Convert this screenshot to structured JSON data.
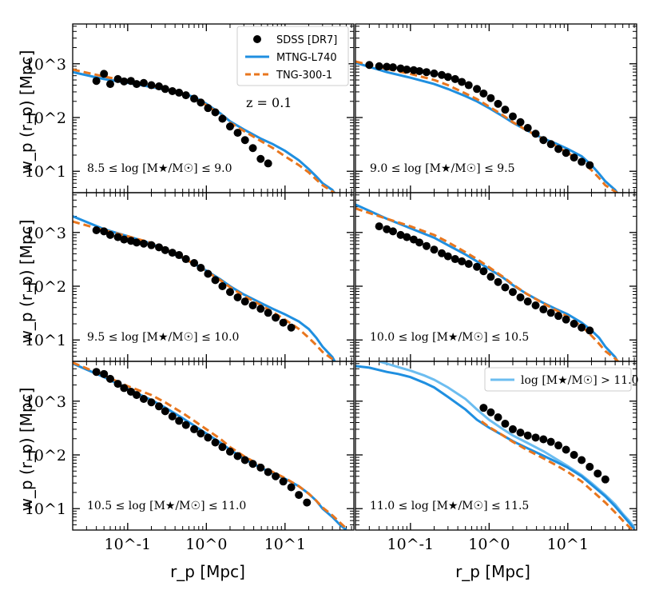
{
  "chart_data": {
    "type": "line",
    "layout": "3x2 grid of log-log panels with shared axes",
    "xlabel": "r_p [Mpc]",
    "ylabel": "w_p (r_p) [Mpc]",
    "xscale": "log",
    "yscale": "log",
    "xlim": [
      0.02,
      75
    ],
    "ylim": [
      4,
      5500
    ],
    "x_tick_labels": [
      "10^-1",
      "10^0",
      "10^1"
    ],
    "y_tick_labels": [
      "10^1",
      "10^2",
      "10^3"
    ],
    "legend": {
      "placement": "top-right of first panel",
      "entries": [
        {
          "label": "SDSS [DR7]",
          "marker": "circle",
          "color": "#000000"
        },
        {
          "label": "MTNG-L740",
          "style": "solid",
          "color": "#1f8fe0"
        },
        {
          "label": "TNG-300-1",
          "style": "dashed",
          "color": "#e8761e"
        }
      ]
    },
    "extra_legend": {
      "placement": "top-right of last panel",
      "label": "log [M★/M☉] > 11.0",
      "style": "solid",
      "color": "#6cbdf0"
    },
    "redshift_label": "z = 0.1",
    "colors": {
      "sdss": "#000000",
      "mtng": "#1f8fe0",
      "tng": "#e8761e",
      "mtng_high": "#6cbdf0"
    },
    "panels": [
      {
        "label": "8.5 ≤ log [M★/M☉] ≤ 9.0",
        "sdss": {
          "x": [
            0.04,
            0.05,
            0.06,
            0.075,
            0.09,
            0.11,
            0.13,
            0.16,
            0.2,
            0.25,
            0.3,
            0.37,
            0.45,
            0.55,
            0.7,
            0.85,
            1.05,
            1.3,
            1.6,
            2.0,
            2.5,
            3.1,
            3.9,
            4.9,
            6.1
          ],
          "y": [
            480,
            650,
            420,
            520,
            470,
            480,
            420,
            440,
            400,
            380,
            340,
            310,
            290,
            260,
            225,
            190,
            150,
            125,
            95,
            68,
            52,
            38,
            27,
            17,
            14
          ]
        },
        "mtng": {
          "x": [
            0.02,
            0.05,
            0.1,
            0.2,
            0.3,
            0.5,
            0.7,
            1,
            1.5,
            2,
            3,
            5,
            7,
            10,
            15,
            20,
            25,
            30,
            40,
            45
          ],
          "y": [
            700,
            520,
            440,
            370,
            330,
            280,
            240,
            180,
            120,
            85,
            60,
            40,
            32,
            24,
            16,
            11,
            8,
            6,
            4.5,
            3.5
          ]
        },
        "tng": {
          "x": [
            0.02,
            0.05,
            0.1,
            0.2,
            0.3,
            0.5,
            0.7,
            1,
            1.5,
            2,
            3,
            5,
            7,
            10,
            15,
            20,
            25,
            30,
            40,
            50
          ],
          "y": [
            780,
            580,
            470,
            390,
            340,
            280,
            230,
            170,
            115,
            80,
            56,
            36,
            27,
            19,
            13,
            9.5,
            7,
            5.5,
            4.2,
            3.3
          ]
        }
      },
      {
        "label": "9.0 ≤ log [M★/M☉] ≤ 9.5",
        "sdss": {
          "x": [
            0.03,
            0.04,
            0.05,
            0.06,
            0.075,
            0.09,
            0.11,
            0.13,
            0.16,
            0.2,
            0.25,
            0.3,
            0.37,
            0.45,
            0.55,
            0.7,
            0.85,
            1.05,
            1.3,
            1.6,
            2.0,
            2.5,
            3.1,
            3.9,
            4.9,
            6.1,
            7.6,
            9.5,
            12,
            15,
            19
          ],
          "y": [
            950,
            900,
            880,
            860,
            820,
            780,
            760,
            730,
            700,
            660,
            620,
            570,
            520,
            460,
            400,
            340,
            280,
            230,
            180,
            140,
            105,
            82,
            64,
            50,
            38,
            32,
            26,
            22,
            18,
            15,
            13
          ]
        },
        "mtng": {
          "x": [
            0.02,
            0.05,
            0.1,
            0.2,
            0.3,
            0.5,
            0.7,
            1,
            1.5,
            2,
            3,
            5,
            7,
            10,
            15,
            20,
            25,
            30,
            40,
            45
          ],
          "y": [
            1050,
            700,
            550,
            420,
            340,
            250,
            200,
            150,
            105,
            80,
            58,
            40,
            33,
            26,
            19,
            13,
            9,
            6.5,
            4.5,
            3.5
          ]
        },
        "tng": {
          "x": [
            0.02,
            0.05,
            0.1,
            0.2,
            0.3,
            0.5,
            0.7,
            1,
            1.5,
            2,
            3,
            5,
            7,
            10,
            15,
            20,
            25,
            30,
            40,
            50
          ],
          "y": [
            1100,
            800,
            650,
            500,
            400,
            280,
            220,
            160,
            110,
            82,
            58,
            39,
            30,
            22,
            15,
            10.5,
            7.5,
            5.5,
            4.2,
            3.3
          ]
        }
      },
      {
        "label": "9.5 ≤ log [M★/M☉] ≤ 10.0",
        "sdss": {
          "x": [
            0.04,
            0.05,
            0.06,
            0.075,
            0.09,
            0.11,
            0.13,
            0.16,
            0.2,
            0.25,
            0.3,
            0.37,
            0.45,
            0.55,
            0.7,
            0.85,
            1.05,
            1.3,
            1.6,
            2.0,
            2.5,
            3.1,
            3.9,
            4.9,
            6.1,
            7.6,
            9.5,
            12
          ],
          "y": [
            1100,
            1050,
            900,
            820,
            740,
            700,
            650,
            620,
            580,
            530,
            470,
            420,
            380,
            320,
            270,
            220,
            170,
            130,
            100,
            78,
            62,
            52,
            44,
            38,
            32,
            26,
            21,
            17
          ]
        },
        "mtng": {
          "x": [
            0.02,
            0.05,
            0.1,
            0.2,
            0.3,
            0.5,
            0.7,
            1,
            1.5,
            2,
            3,
            5,
            7,
            10,
            15,
            20,
            25,
            30,
            40,
            45
          ],
          "y": [
            2000,
            1150,
            850,
            620,
            470,
            330,
            260,
            195,
            135,
            100,
            70,
            48,
            38,
            30,
            22,
            16,
            11,
            7.5,
            4.8,
            3.5
          ]
        },
        "tng": {
          "x": [
            0.02,
            0.05,
            0.1,
            0.2,
            0.3,
            0.5,
            0.7,
            1,
            1.5,
            2,
            3,
            5,
            7,
            10,
            15,
            20,
            25,
            30,
            40,
            50
          ],
          "y": [
            1600,
            1100,
            850,
            640,
            490,
            340,
            260,
            190,
            130,
            96,
            66,
            44,
            33,
            24,
            16,
            11,
            8,
            6,
            4.4,
            3.3
          ]
        }
      },
      {
        "label": "10.0 ≤ log [M★/M☉] ≤ 10.5",
        "sdss": {
          "x": [
            0.04,
            0.05,
            0.06,
            0.075,
            0.09,
            0.11,
            0.13,
            0.16,
            0.2,
            0.25,
            0.3,
            0.37,
            0.45,
            0.55,
            0.7,
            0.85,
            1.05,
            1.3,
            1.6,
            2.0,
            2.5,
            3.1,
            3.9,
            4.9,
            6.1,
            7.6,
            9.5,
            12,
            15,
            19
          ],
          "y": [
            1300,
            1150,
            1050,
            900,
            820,
            740,
            650,
            560,
            480,
            410,
            360,
            320,
            290,
            260,
            230,
            190,
            150,
            120,
            95,
            78,
            62,
            52,
            44,
            37,
            32,
            28,
            24,
            20,
            17,
            15
          ]
        },
        "mtng": {
          "x": [
            0.02,
            0.05,
            0.1,
            0.2,
            0.3,
            0.5,
            0.7,
            1,
            1.5,
            2,
            3,
            5,
            7,
            10,
            15,
            20,
            25,
            30,
            40,
            45
          ],
          "y": [
            3300,
            1800,
            1200,
            800,
            580,
            390,
            290,
            210,
            145,
            105,
            72,
            48,
            38,
            30,
            21,
            15,
            11,
            7.5,
            4.8,
            3.5
          ]
        },
        "tng": {
          "x": [
            0.02,
            0.05,
            0.1,
            0.2,
            0.3,
            0.5,
            0.7,
            1,
            1.5,
            2,
            3,
            5,
            7,
            10,
            15,
            20,
            25,
            30,
            40,
            50
          ],
          "y": [
            2800,
            1800,
            1300,
            900,
            660,
            430,
            320,
            225,
            150,
            108,
            72,
            47,
            36,
            27,
            18,
            12,
            8.5,
            6.2,
            4.5,
            3.3
          ]
        }
      },
      {
        "label": "10.5 ≤ log [M★/M☉] ≤ 11.0",
        "sdss": {
          "x": [
            0.04,
            0.05,
            0.06,
            0.075,
            0.09,
            0.11,
            0.13,
            0.16,
            0.2,
            0.25,
            0.3,
            0.37,
            0.45,
            0.55,
            0.7,
            0.85,
            1.05,
            1.3,
            1.6,
            2.0,
            2.5,
            3.1,
            3.9,
            4.9,
            6.1,
            7.6,
            9.5,
            12,
            15,
            19
          ],
          "y": [
            3500,
            3200,
            2600,
            2100,
            1750,
            1500,
            1300,
            1100,
            950,
            800,
            650,
            520,
            430,
            360,
            300,
            250,
            210,
            170,
            140,
            115,
            95,
            80,
            68,
            58,
            48,
            40,
            32,
            25,
            18,
            13
          ]
        },
        "mtng": {
          "x": [
            0.02,
            0.05,
            0.1,
            0.2,
            0.3,
            0.5,
            0.7,
            1,
            1.5,
            2,
            3,
            5,
            7,
            10,
            15,
            20,
            25,
            30,
            40,
            50,
            60
          ],
          "y": [
            5000,
            2800,
            1700,
            1050,
            760,
            480,
            350,
            250,
            170,
            125,
            85,
            57,
            45,
            36,
            26,
            19,
            14,
            10,
            7,
            5,
            4
          ]
        },
        "tng": {
          "x": [
            0.02,
            0.05,
            0.1,
            0.2,
            0.3,
            0.5,
            0.7,
            1,
            1.5,
            2,
            3,
            5,
            7,
            10,
            15,
            20,
            25,
            30,
            40,
            50,
            60
          ],
          "y": [
            5200,
            3000,
            1900,
            1300,
            950,
            600,
            430,
            300,
            200,
            140,
            95,
            62,
            48,
            37,
            26,
            19,
            14,
            10.5,
            7.5,
            5.5,
            4.3
          ]
        }
      },
      {
        "label": "11.0 ≤ log [M★/M☉] ≤ 11.5",
        "sdss": {
          "x": [
            0.85,
            1.05,
            1.3,
            1.6,
            2.0,
            2.5,
            3.1,
            3.9,
            4.9,
            6.1,
            7.6,
            9.5,
            12,
            15,
            19,
            24,
            30
          ],
          "y": [
            750,
            620,
            500,
            380,
            300,
            260,
            230,
            210,
            195,
            175,
            150,
            125,
            100,
            80,
            60,
            45,
            35
          ]
        },
        "mtng": {
          "x": [
            0.02,
            0.03,
            0.05,
            0.07,
            0.1,
            0.15,
            0.2,
            0.3,
            0.5,
            0.7,
            1,
            1.5,
            2,
            3,
            5,
            7,
            10,
            15,
            20,
            30,
            40,
            50,
            60,
            70
          ],
          "y": [
            4500,
            4200,
            3500,
            3200,
            2800,
            2200,
            1800,
            1200,
            700,
            450,
            320,
            230,
            180,
            135,
            95,
            75,
            58,
            40,
            28,
            17,
            11,
            7.5,
            5.5,
            4.2
          ]
        },
        "tng": {
          "x": [
            0.8,
            1,
            1.5,
            2,
            3,
            5,
            7,
            10,
            15,
            20,
            30,
            40,
            50,
            60,
            70
          ],
          "y": [
            420,
            330,
            230,
            175,
            125,
            85,
            65,
            48,
            32,
            22,
            13,
            8.5,
            6,
            4.6,
            3.8
          ]
        },
        "mtng_high": {
          "x": [
            0.04,
            0.05,
            0.07,
            0.1,
            0.15,
            0.2,
            0.3,
            0.5,
            0.7,
            1,
            1.5,
            2,
            3,
            5,
            7,
            10,
            15,
            20,
            30,
            40,
            50,
            60,
            70
          ],
          "y": [
            5500,
            5000,
            4300,
            3700,
            3000,
            2500,
            1800,
            1100,
            700,
            450,
            300,
            230,
            170,
            115,
            85,
            62,
            42,
            30,
            18,
            12,
            8,
            6,
            4.5
          ]
        }
      }
    ]
  }
}
